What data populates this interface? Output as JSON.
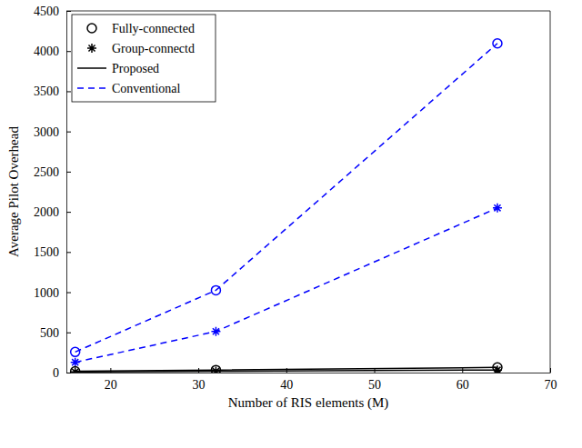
{
  "chart_data": {
    "type": "line",
    "x_label": "Number of RIS elements (M)",
    "y_label": "Average Pilot Overhead",
    "x": [
      16,
      32,
      64
    ],
    "xlim": [
      15,
      70
    ],
    "xticks": [
      20,
      30,
      40,
      50,
      60,
      70
    ],
    "ylim": [
      0,
      4500
    ],
    "yticks": [
      0,
      500,
      1000,
      1500,
      2000,
      2500,
      3000,
      3500,
      4000,
      4500
    ],
    "grid": false,
    "legend": "upper left",
    "legend_items": [
      {
        "label": "Fully-connected",
        "marker": "circle",
        "color": "#000000"
      },
      {
        "label": "Group-connectd",
        "marker": "star",
        "color": "#000000"
      },
      {
        "label": "Proposed",
        "line_style": "solid",
        "color": "#000000"
      },
      {
        "label": "Conventional",
        "line_style": "dashed",
        "color": "#0000ff"
      }
    ],
    "series": [
      {
        "color": "#0000ff",
        "marker": "circle",
        "line_style": "dashed",
        "values": [
          256,
          1024,
          4096
        ]
      },
      {
        "color": "#0000ff",
        "marker": "star",
        "line_style": "dashed",
        "values": [
          128,
          512,
          2048
        ]
      },
      {
        "color": "#000000",
        "marker": "circle",
        "line_style": "solid",
        "values": [
          16,
          32,
          64
        ]
      },
      {
        "color": "#000000",
        "marker": "star",
        "line_style": "solid",
        "values": [
          8,
          16,
          32
        ]
      }
    ]
  }
}
